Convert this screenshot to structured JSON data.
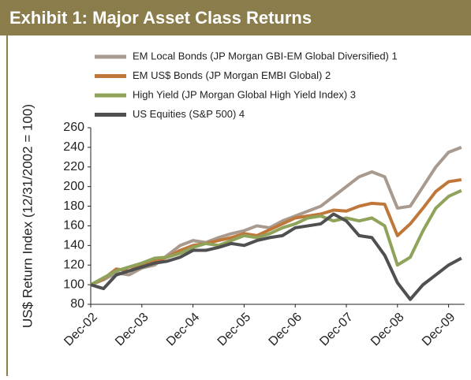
{
  "chart_data": {
    "type": "line",
    "title": "Exhibit 1: Major Asset Class Returns",
    "y_label": "US$ Return Index (12/31/2002 = 100)",
    "categories": [
      "Dec-02",
      null,
      null,
      null,
      "Dec-03",
      null,
      null,
      null,
      "Dec-04",
      null,
      null,
      null,
      "Dec-05",
      null,
      null,
      null,
      "Dec-06",
      null,
      null,
      null,
      "Dec-07",
      null,
      null,
      null,
      "Dec-08",
      null,
      null,
      null,
      "Dec-09",
      null
    ],
    "series": [
      {
        "name": "EM Local Bonds (JP Morgan GBI-EM Global Diversified) 1",
        "color": "#a89a8e",
        "values": [
          100,
          105,
          112,
          110,
          117,
          120,
          130,
          140,
          145,
          143,
          148,
          152,
          155,
          160,
          158,
          165,
          170,
          175,
          180,
          190,
          200,
          210,
          215,
          210,
          178,
          180,
          200,
          220,
          235,
          240
        ]
      },
      {
        "name": "EM US$ Bonds (JP Morgan EMBI Global) 2",
        "color": "#c0773a",
        "values": [
          100,
          106,
          116,
          114,
          120,
          124,
          128,
          135,
          140,
          142,
          145,
          148,
          152,
          150,
          156,
          162,
          168,
          170,
          172,
          176,
          175,
          180,
          183,
          182,
          150,
          162,
          178,
          195,
          205,
          207
        ]
      },
      {
        "name": "High Yield (JP Morgan Global High Yield Index) 3",
        "color": "#8fa35a",
        "values": [
          100,
          107,
          114,
          118,
          122,
          127,
          128,
          132,
          138,
          142,
          140,
          145,
          150,
          148,
          152,
          158,
          162,
          168,
          170,
          165,
          168,
          165,
          168,
          160,
          120,
          128,
          155,
          178,
          190,
          196
        ]
      },
      {
        "name": "US Equities (S&P 500) 4",
        "color": "#505050",
        "values": [
          100,
          96,
          110,
          114,
          118,
          122,
          124,
          128,
          135,
          135,
          138,
          142,
          140,
          145,
          148,
          150,
          158,
          160,
          162,
          172,
          165,
          150,
          148,
          130,
          102,
          85,
          100,
          110,
          120,
          127
        ]
      }
    ],
    "ylim": [
      80,
      260
    ],
    "yticks": [
      80,
      100,
      120,
      140,
      160,
      180,
      200,
      220,
      240,
      260
    ]
  }
}
